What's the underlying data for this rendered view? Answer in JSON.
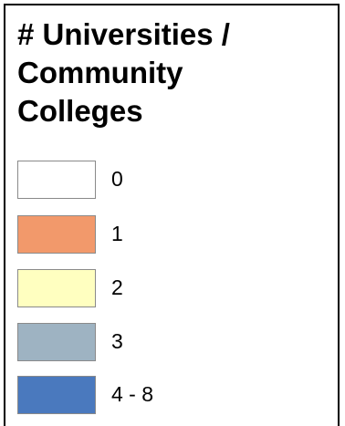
{
  "legend": {
    "title_lines": [
      "# Universities /",
      "Community",
      "Colleges"
    ],
    "items": [
      {
        "label": "0",
        "color": "#ffffff"
      },
      {
        "label": "1",
        "color": "#f2996b"
      },
      {
        "label": "2",
        "color": "#ffffc0"
      },
      {
        "label": "3",
        "color": "#9eb3c2"
      },
      {
        "label": "4 - 8",
        "color": "#4a79be"
      }
    ]
  }
}
